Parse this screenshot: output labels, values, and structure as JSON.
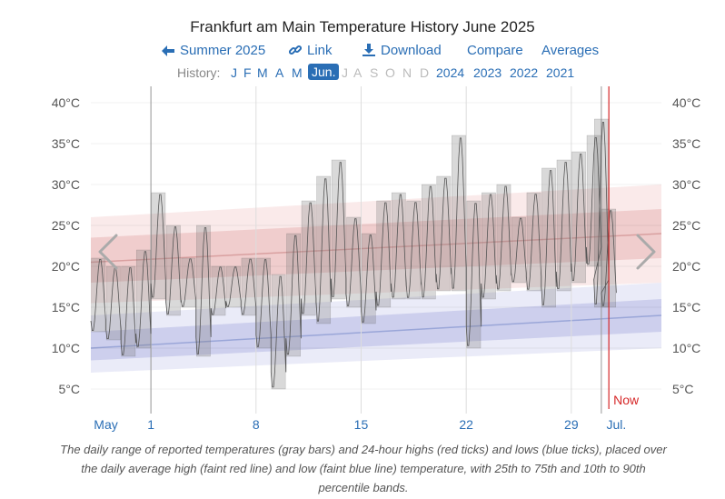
{
  "title": "Frankfurt am Main Temperature History June 2025",
  "toolbar": {
    "summer": "Summer 2025",
    "link": "Link",
    "download": "Download",
    "compare": "Compare",
    "averages": "Averages"
  },
  "history": {
    "label": "History:",
    "months": [
      "J",
      "F",
      "M",
      "A",
      "M",
      "Jun.",
      "J",
      "A",
      "S",
      "O",
      "N",
      "D"
    ],
    "active_index": 5,
    "years": [
      "2024",
      "2023",
      "2022",
      "2021"
    ]
  },
  "caption": "The daily range of reported temperatures (gray bars) and 24-hour highs (red ticks) and lows (blue ticks), placed over the daily average high (faint red line) and low (faint blue line) temperature, with 25th to 75th and 10th to 90th percentile bands.",
  "colors": {
    "accent": "#2a6eb5",
    "now_line": "#d62728",
    "avg_high": "#d9a0a0",
    "avg_low": "#9aa6d8"
  },
  "chart_data": {
    "type": "bar",
    "title": "Frankfurt am Main Temperature History June 2025",
    "unit": "°C",
    "ylim": [
      2,
      42
    ],
    "y_ticks": [
      "40°C",
      "35°C",
      "30°C",
      "25°C",
      "20°C",
      "15°C",
      "10°C",
      "5°C"
    ],
    "y_tick_values": [
      40,
      35,
      30,
      25,
      20,
      15,
      10,
      5
    ],
    "xlim": [
      -3,
      35
    ],
    "x_labels": [
      "May",
      "1",
      "8",
      "15",
      "22",
      "29",
      "Jul."
    ],
    "x_label_days": [
      -2,
      1,
      8,
      15,
      22,
      29,
      32
    ],
    "month_start_days": [
      1,
      31
    ],
    "now_day": 31.5,
    "now_label": "Now",
    "daily_ranges": [
      {
        "day": -2.5,
        "low": 12,
        "high": 21
      },
      {
        "day": -1.5,
        "low": 11,
        "high": 20
      },
      {
        "day": -0.5,
        "low": 9,
        "high": 20
      },
      {
        "day": 0.5,
        "low": 10,
        "high": 22
      },
      {
        "day": 1.5,
        "low": 16,
        "high": 29
      },
      {
        "day": 2.5,
        "low": 14,
        "high": 25
      },
      {
        "day": 3.5,
        "low": 15,
        "high": 21
      },
      {
        "day": 4.5,
        "low": 9,
        "high": 25
      },
      {
        "day": 5.5,
        "low": 14,
        "high": 20
      },
      {
        "day": 6.5,
        "low": 15,
        "high": 20
      },
      {
        "day": 7.5,
        "low": 14,
        "high": 21
      },
      {
        "day": 8.5,
        "low": 10,
        "high": 21
      },
      {
        "day": 9.5,
        "low": 5,
        "high": 19
      },
      {
        "day": 10.5,
        "low": 9,
        "high": 24
      },
      {
        "day": 11.5,
        "low": 14,
        "high": 28
      },
      {
        "day": 12.5,
        "low": 13,
        "high": 31
      },
      {
        "day": 13.5,
        "low": 16,
        "high": 33
      },
      {
        "day": 14.5,
        "low": 15,
        "high": 26
      },
      {
        "day": 15.5,
        "low": 13,
        "high": 24
      },
      {
        "day": 16.5,
        "low": 15,
        "high": 28
      },
      {
        "day": 17.5,
        "low": 16,
        "high": 29
      },
      {
        "day": 18.5,
        "low": 16,
        "high": 28
      },
      {
        "day": 19.5,
        "low": 16,
        "high": 30
      },
      {
        "day": 20.5,
        "low": 17,
        "high": 31
      },
      {
        "day": 21.5,
        "low": 17,
        "high": 36
      },
      {
        "day": 22.5,
        "low": 10,
        "high": 28
      },
      {
        "day": 23.5,
        "low": 16,
        "high": 29
      },
      {
        "day": 24.5,
        "low": 17,
        "high": 30
      },
      {
        "day": 25.5,
        "low": 18,
        "high": 26
      },
      {
        "day": 26.5,
        "low": 17,
        "high": 29
      },
      {
        "day": 27.5,
        "low": 15,
        "high": 32
      },
      {
        "day": 28.5,
        "low": 17,
        "high": 33
      },
      {
        "day": 29.5,
        "low": 18,
        "high": 34
      },
      {
        "day": 30.5,
        "low": 20,
        "high": 36
      },
      {
        "day": 31.0,
        "low": 15,
        "high": 38
      },
      {
        "day": 31.5,
        "low": 15,
        "high": 27
      }
    ],
    "avg_high": {
      "start": 20.5,
      "end": 24.0
    },
    "avg_low": {
      "start": 10.0,
      "end": 14.0
    },
    "high_band_25_75": {
      "start": [
        18,
        23.5
      ],
      "end": [
        21,
        27
      ]
    },
    "high_band_10_90": {
      "start": [
        15.5,
        26
      ],
      "end": [
        18,
        30
      ]
    },
    "low_band_25_75": {
      "start": [
        8.5,
        12
      ],
      "end": [
        12,
        16
      ]
    },
    "low_band_10_90": {
      "start": [
        7,
        14
      ],
      "end": [
        10,
        18
      ]
    }
  }
}
